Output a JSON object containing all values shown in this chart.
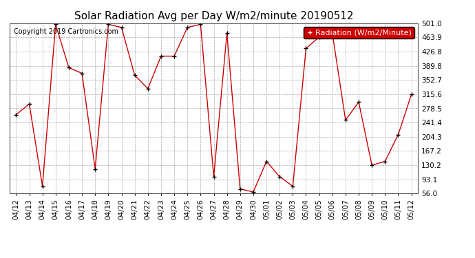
{
  "title": "Solar Radiation Avg per Day W/m2/minute 20190512",
  "copyright": "Copyright 2019 Cartronics.com",
  "legend_label": "Radiation (W/m2/Minute)",
  "dates": [
    "04/12",
    "04/13",
    "04/14",
    "04/15",
    "04/16",
    "04/17",
    "04/18",
    "04/19",
    "04/20",
    "04/21",
    "04/22",
    "04/23",
    "04/24",
    "04/25",
    "04/26",
    "04/27",
    "04/28",
    "04/29",
    "04/30",
    "05/01",
    "05/02",
    "05/03",
    "05/04",
    "05/05",
    "05/06",
    "05/07",
    "05/08",
    "05/09",
    "05/10",
    "05/11",
    "05/12"
  ],
  "values": [
    262,
    290,
    75,
    498,
    385,
    370,
    120,
    498,
    490,
    365,
    330,
    415,
    415,
    490,
    498,
    100,
    475,
    68,
    60,
    140,
    100,
    75,
    435,
    465,
    475,
    248,
    295,
    130,
    140,
    210,
    315
  ],
  "ylim": [
    56.0,
    501.0
  ],
  "yticks": [
    56.0,
    93.1,
    130.2,
    167.2,
    204.3,
    241.4,
    278.5,
    315.6,
    352.7,
    389.8,
    426.8,
    463.9,
    501.0
  ],
  "line_color": "#cc0000",
  "marker_color": "#000000",
  "bg_color": "#ffffff",
  "plot_bg_color": "#ffffff",
  "grid_color": "#aaaaaa",
  "legend_bg": "#cc0000",
  "legend_text_color": "#ffffff",
  "title_fontsize": 11,
  "copyright_fontsize": 7,
  "tick_fontsize": 7.5,
  "legend_fontsize": 8
}
